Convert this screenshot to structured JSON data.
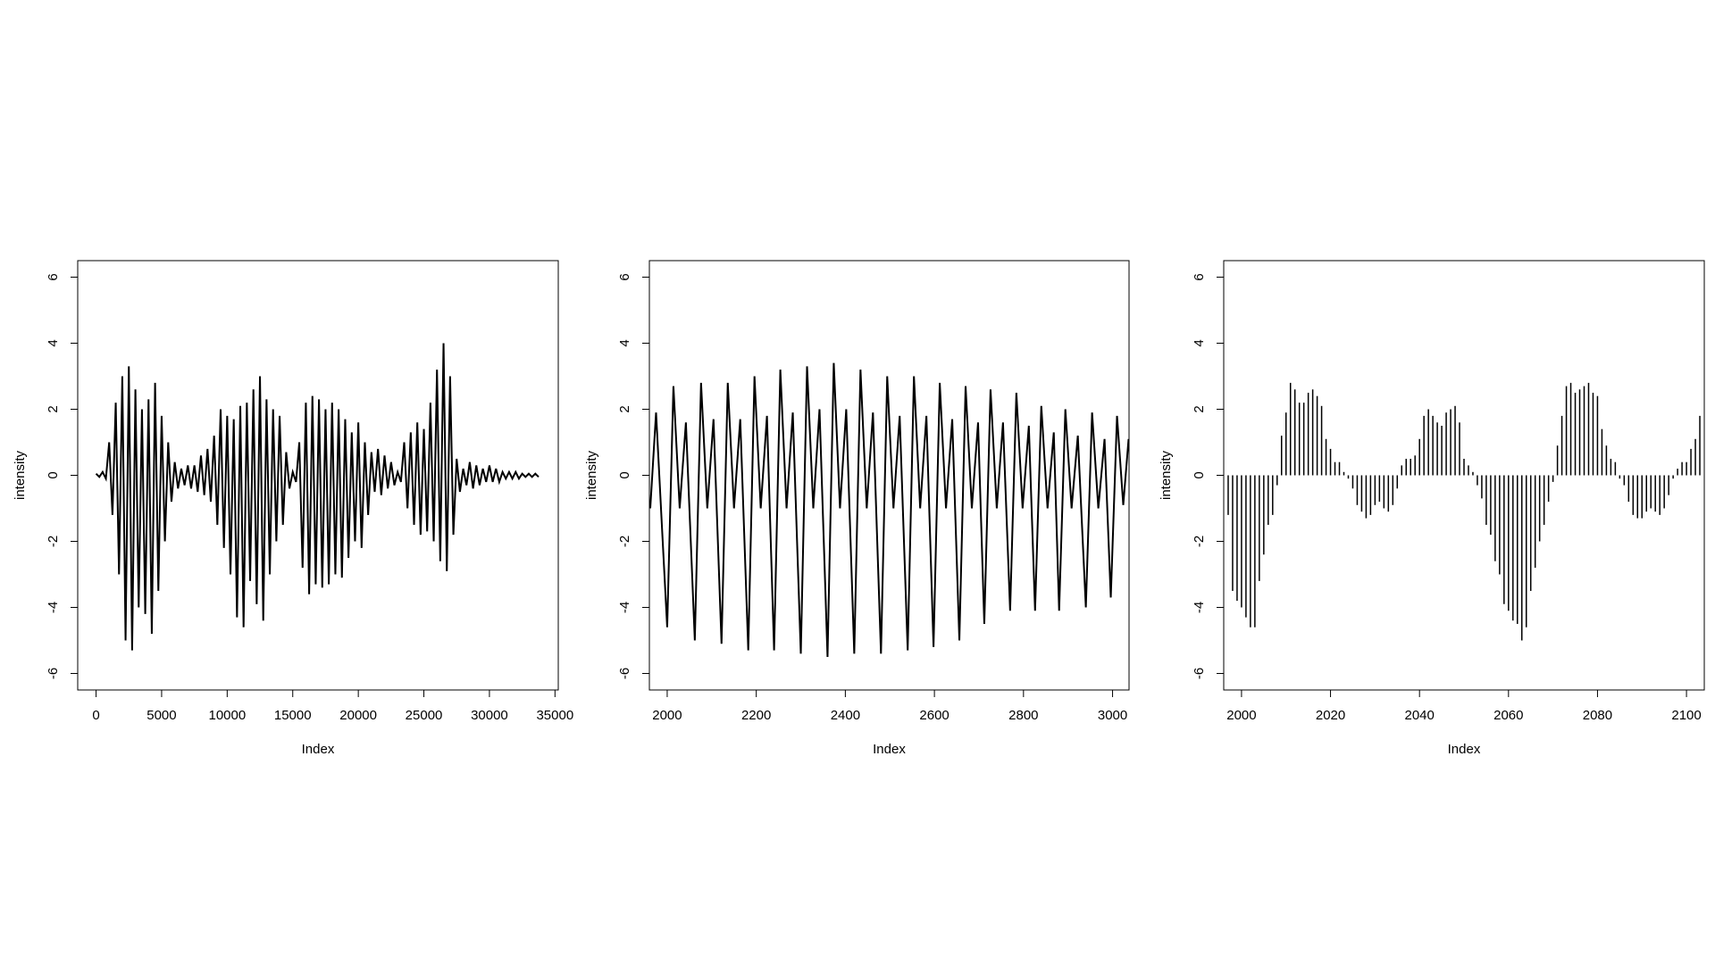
{
  "chart_data": [
    {
      "type": "line",
      "xlabel": "Index",
      "ylabel": "intensity",
      "color": "#000000",
      "xlim": [
        -1400,
        35250
      ],
      "ylim": [
        -6.5,
        6.5
      ],
      "xticks": [
        0,
        5000,
        10000,
        15000,
        20000,
        25000,
        30000,
        35000
      ],
      "yticks": [
        -6,
        -4,
        -2,
        0,
        2,
        4,
        6
      ],
      "x": [
        0,
        250,
        500,
        750,
        1000,
        1250,
        1500,
        1750,
        2000,
        2250,
        2500,
        2750,
        3000,
        3250,
        3500,
        3750,
        4000,
        4250,
        4500,
        4750,
        5000,
        5250,
        5500,
        5750,
        6000,
        6250,
        6500,
        6750,
        7000,
        7250,
        7500,
        7750,
        8000,
        8250,
        8500,
        8750,
        9000,
        9250,
        9500,
        9750,
        10000,
        10250,
        10500,
        10750,
        11000,
        11250,
        11500,
        11750,
        12000,
        12250,
        12500,
        12750,
        13000,
        13250,
        13500,
        13750,
        14000,
        14250,
        14500,
        14750,
        15000,
        15250,
        15500,
        15750,
        16000,
        16250,
        16500,
        16750,
        17000,
        17250,
        17500,
        17750,
        18000,
        18250,
        18500,
        18750,
        19000,
        19250,
        19500,
        19750,
        20000,
        20250,
        20500,
        20750,
        21000,
        21250,
        21500,
        21750,
        22000,
        22250,
        22500,
        22750,
        23000,
        23250,
        23500,
        23750,
        24000,
        24250,
        24500,
        24750,
        25000,
        25250,
        25500,
        25750,
        26000,
        26250,
        26500,
        26750,
        27000,
        27250,
        27500,
        27750,
        28000,
        28250,
        28500,
        28750,
        29000,
        29250,
        29500,
        29750,
        30000,
        30250,
        30500,
        30750,
        31000,
        31250,
        31500,
        31750,
        32000,
        32250,
        32500,
        32750,
        33000,
        33250,
        33500,
        33750
      ],
      "values": [
        0.05,
        -0.05,
        0.1,
        -0.1,
        1.0,
        -1.2,
        2.2,
        -3.0,
        3.0,
        -5.0,
        3.3,
        -5.3,
        2.6,
        -4.0,
        2.0,
        -4.2,
        2.3,
        -4.8,
        2.8,
        -3.5,
        1.8,
        -2.0,
        1.0,
        -0.8,
        0.4,
        -0.4,
        0.2,
        -0.3,
        0.3,
        -0.4,
        0.3,
        -0.5,
        0.6,
        -0.6,
        0.8,
        -0.8,
        1.2,
        -1.5,
        2.0,
        -2.2,
        1.8,
        -3.0,
        1.7,
        -4.3,
        2.1,
        -4.6,
        2.2,
        -3.2,
        2.6,
        -3.9,
        3.0,
        -4.4,
        2.3,
        -3.0,
        2.0,
        -2.0,
        1.8,
        -1.5,
        0.7,
        -0.4,
        0.1,
        -0.2,
        1.0,
        -2.8,
        2.2,
        -3.6,
        2.4,
        -3.3,
        2.3,
        -3.4,
        2.0,
        -3.3,
        2.2,
        -3.0,
        2.0,
        -3.1,
        1.7,
        -2.5,
        1.3,
        -2.0,
        1.6,
        -2.2,
        1.0,
        -1.2,
        0.7,
        -0.5,
        0.8,
        -0.6,
        0.6,
        -0.4,
        0.4,
        -0.3,
        0.1,
        -0.2,
        1.0,
        -1.0,
        1.3,
        -1.5,
        1.6,
        -1.8,
        1.4,
        -1.7,
        2.2,
        -2.0,
        3.2,
        -2.6,
        4.0,
        -2.9,
        3.0,
        -1.8,
        0.5,
        -0.5,
        0.2,
        -0.3,
        0.4,
        -0.4,
        0.3,
        -0.3,
        0.2,
        -0.2,
        0.3,
        -0.2,
        0.2,
        -0.2,
        0.1,
        -0.1,
        0.1,
        -0.1,
        0.1,
        -0.1,
        0.05,
        -0.05,
        0.05,
        -0.05,
        0.05,
        -0.05
      ]
    },
    {
      "type": "line",
      "xlabel": "Index",
      "ylabel": "intensity",
      "color": "#000000",
      "xlim": [
        1960,
        3037
      ],
      "ylim": [
        -6.5,
        6.5
      ],
      "xticks": [
        2000,
        2200,
        2400,
        2600,
        2800,
        3000
      ],
      "yticks": [
        -6,
        -4,
        -2,
        0,
        2,
        4,
        6
      ],
      "x": [
        1962,
        1975,
        1988,
        2000,
        2014,
        2028,
        2042,
        2062,
        2076,
        2090,
        2104,
        2122,
        2136,
        2150,
        2164,
        2182,
        2196,
        2210,
        2224,
        2240,
        2254,
        2268,
        2282,
        2300,
        2314,
        2328,
        2342,
        2360,
        2374,
        2388,
        2402,
        2420,
        2434,
        2448,
        2462,
        2480,
        2494,
        2508,
        2522,
        2540,
        2554,
        2568,
        2582,
        2598,
        2612,
        2626,
        2640,
        2656,
        2670,
        2684,
        2698,
        2712,
        2726,
        2740,
        2754,
        2770,
        2784,
        2798,
        2812,
        2826,
        2840,
        2854,
        2868,
        2880,
        2894,
        2908,
        2922,
        2940,
        2954,
        2968,
        2982,
        2996,
        3010,
        3024,
        3036
      ],
      "values": [
        -1.0,
        1.9,
        -1.5,
        -4.6,
        2.7,
        -1.0,
        1.6,
        -5.0,
        2.8,
        -1.0,
        1.7,
        -5.1,
        2.8,
        -1.0,
        1.7,
        -5.3,
        3.0,
        -1.0,
        1.8,
        -5.3,
        3.2,
        -1.0,
        1.9,
        -5.4,
        3.3,
        -1.0,
        2.0,
        -5.5,
        3.4,
        -1.0,
        2.0,
        -5.4,
        3.2,
        -1.0,
        1.9,
        -5.4,
        3.0,
        -1.0,
        1.8,
        -5.3,
        3.0,
        -1.0,
        1.8,
        -5.2,
        2.8,
        -1.0,
        1.7,
        -5.0,
        2.7,
        -1.0,
        1.6,
        -4.5,
        2.6,
        -1.0,
        1.6,
        -4.1,
        2.5,
        -1.0,
        1.5,
        -4.1,
        2.1,
        -1.0,
        1.3,
        -4.1,
        2.0,
        -1.0,
        1.2,
        -4.0,
        1.9,
        -1.0,
        1.1,
        -3.7,
        1.8,
        -0.9,
        1.1
      ]
    },
    {
      "type": "h",
      "xlabel": "Index",
      "ylabel": "intensity",
      "color": "#000000",
      "xlim": [
        1996,
        2104
      ],
      "ylim": [
        -6.5,
        6.5
      ],
      "xticks": [
        2000,
        2020,
        2040,
        2060,
        2080,
        2100
      ],
      "yticks": [
        -6,
        -4,
        -2,
        0,
        2,
        4,
        6
      ],
      "x": [
        1997,
        1998,
        1999,
        2000,
        2001,
        2002,
        2003,
        2004,
        2005,
        2006,
        2007,
        2008,
        2009,
        2010,
        2011,
        2012,
        2013,
        2014,
        2015,
        2016,
        2017,
        2018,
        2019,
        2020,
        2021,
        2022,
        2023,
        2024,
        2025,
        2026,
        2027,
        2028,
        2029,
        2030,
        2031,
        2032,
        2033,
        2034,
        2035,
        2036,
        2037,
        2038,
        2039,
        2040,
        2041,
        2042,
        2043,
        2044,
        2045,
        2046,
        2047,
        2048,
        2049,
        2050,
        2051,
        2052,
        2053,
        2054,
        2055,
        2056,
        2057,
        2058,
        2059,
        2060,
        2061,
        2062,
        2063,
        2064,
        2065,
        2066,
        2067,
        2068,
        2069,
        2070,
        2071,
        2072,
        2073,
        2074,
        2075,
        2076,
        2077,
        2078,
        2079,
        2080,
        2081,
        2082,
        2083,
        2084,
        2085,
        2086,
        2087,
        2088,
        2089,
        2090,
        2091,
        2092,
        2093,
        2094,
        2095,
        2096,
        2097,
        2098,
        2099,
        2100,
        2101,
        2102,
        2103
      ],
      "values": [
        -1.2,
        -3.5,
        -3.8,
        -4.0,
        -4.3,
        -4.6,
        -4.6,
        -3.2,
        -2.4,
        -1.5,
        -1.2,
        -0.3,
        1.2,
        1.9,
        2.8,
        2.6,
        2.2,
        2.2,
        2.5,
        2.6,
        2.4,
        2.1,
        1.1,
        0.8,
        0.4,
        0.4,
        0.1,
        -0.1,
        -0.4,
        -0.9,
        -1.1,
        -1.3,
        -1.2,
        -0.9,
        -0.8,
        -1.0,
        -1.1,
        -0.9,
        -0.4,
        0.3,
        0.5,
        0.5,
        0.6,
        1.1,
        1.8,
        2.0,
        1.8,
        1.6,
        1.5,
        1.9,
        2.0,
        2.1,
        1.6,
        0.5,
        0.3,
        0.1,
        -0.3,
        -0.7,
        -1.5,
        -1.8,
        -2.6,
        -3.0,
        -3.9,
        -4.1,
        -4.4,
        -4.5,
        -5.0,
        -4.6,
        -3.5,
        -2.8,
        -2.0,
        -1.5,
        -0.8,
        -0.2,
        0.9,
        1.8,
        2.7,
        2.8,
        2.5,
        2.6,
        2.7,
        2.8,
        2.5,
        2.4,
        1.4,
        0.9,
        0.5,
        0.4,
        -0.1,
        -0.3,
        -0.8,
        -1.2,
        -1.3,
        -1.3,
        -1.1,
        -1.0,
        -1.1,
        -1.2,
        -1.0,
        -0.6,
        -0.1,
        0.2,
        0.4,
        0.4,
        0.8,
        1.1,
        1.8
      ]
    }
  ]
}
